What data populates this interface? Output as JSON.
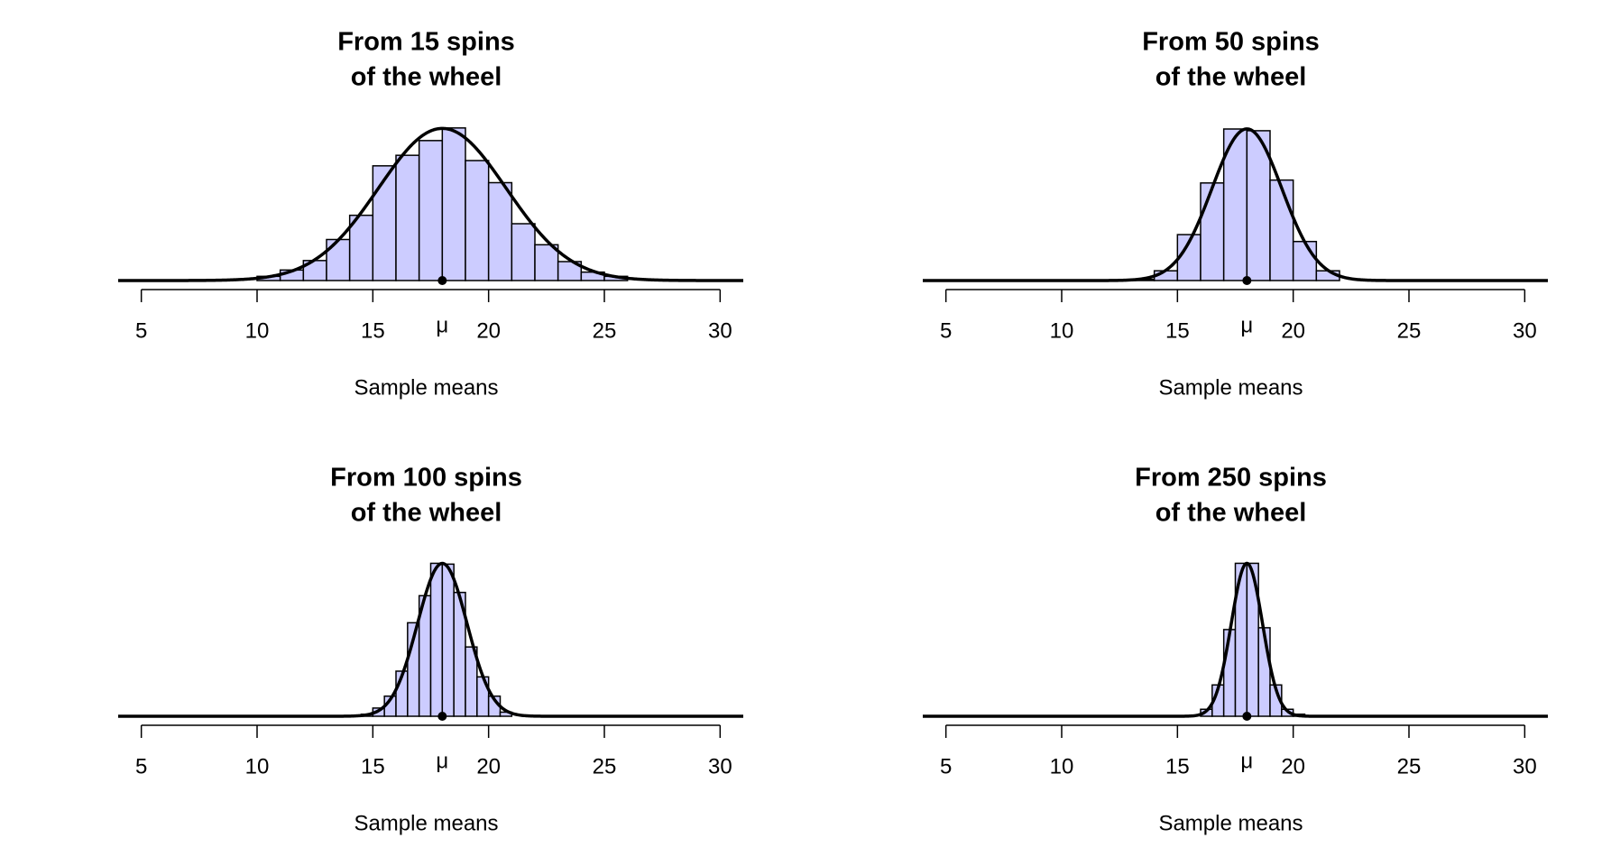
{
  "chart_data": [
    {
      "type": "histogram",
      "title": [
        "From 15 spins",
        "of the wheel"
      ],
      "xlabel": "Sample means",
      "bins": [
        10,
        11,
        12,
        13,
        14,
        15,
        16,
        17,
        18,
        19,
        20,
        21,
        22,
        23,
        24,
        25,
        26
      ],
      "values": [
        0.004,
        0.01,
        0.019,
        0.039,
        0.062,
        0.109,
        0.119,
        0.133,
        0.145,
        0.114,
        0.093,
        0.054,
        0.034,
        0.018,
        0.008,
        0.004
      ],
      "curve": {
        "mean": 18,
        "sd": 2.76
      },
      "color": "#ccccff",
      "xlim": [
        4,
        31
      ],
      "ylim": [
        0,
        0.15
      ],
      "xticks": [
        5,
        10,
        15,
        {
          "value": 18,
          "label": "μ"
        },
        20,
        25,
        30
      ]
    },
    {
      "type": "histogram",
      "title": [
        "From 50 spins",
        "of the wheel"
      ],
      "xlabel": "Sample means",
      "bins": [
        13,
        14,
        15,
        16,
        17,
        18,
        19,
        20,
        21,
        22
      ],
      "values": [
        0.002,
        0.017,
        0.08,
        0.17,
        0.264,
        0.261,
        0.175,
        0.068,
        0.017
      ],
      "curve": {
        "mean": 18,
        "sd": 1.51
      },
      "color": "#ccccff",
      "xlim": [
        4,
        31
      ],
      "ylim": [
        0,
        0.275
      ],
      "xticks": [
        5,
        10,
        15,
        {
          "value": 18,
          "label": "μ"
        },
        20,
        25,
        30
      ]
    },
    {
      "type": "histogram",
      "title": [
        "From 100 spins",
        "of the wheel"
      ],
      "xlabel": "Sample means",
      "bins": [
        14.5,
        15,
        15.5,
        16,
        16.5,
        17,
        17.5,
        18,
        18.5,
        19,
        19.5,
        20,
        20.5,
        21
      ],
      "values": [
        0.005,
        0.02,
        0.049,
        0.11,
        0.228,
        0.294,
        0.373,
        0.371,
        0.302,
        0.169,
        0.096,
        0.049,
        0.01
      ],
      "curve": {
        "mean": 18,
        "sd": 1.07
      },
      "color": "#ccccff",
      "xlim": [
        4,
        31
      ],
      "ylim": [
        0,
        0.385
      ],
      "xticks": [
        5,
        10,
        15,
        {
          "value": 18,
          "label": "μ"
        },
        20,
        25,
        30
      ]
    },
    {
      "type": "histogram",
      "title": [
        "From 250 spins",
        "of the wheel"
      ],
      "xlabel": "Sample means",
      "bins": [
        16,
        16.5,
        17,
        17.5,
        18,
        18.5,
        19,
        19.5,
        20,
        20.5
      ],
      "values": [
        0.027,
        0.121,
        0.335,
        0.591,
        0.591,
        0.342,
        0.121,
        0.027,
        0.008
      ],
      "curve": {
        "mean": 18,
        "sd": 0.675
      },
      "color": "#ccccff",
      "xlim": [
        4,
        31
      ],
      "ylim": [
        0,
        0.61
      ],
      "xticks": [
        5,
        10,
        15,
        {
          "value": 18,
          "label": "μ"
        },
        20,
        25,
        30
      ]
    }
  ]
}
